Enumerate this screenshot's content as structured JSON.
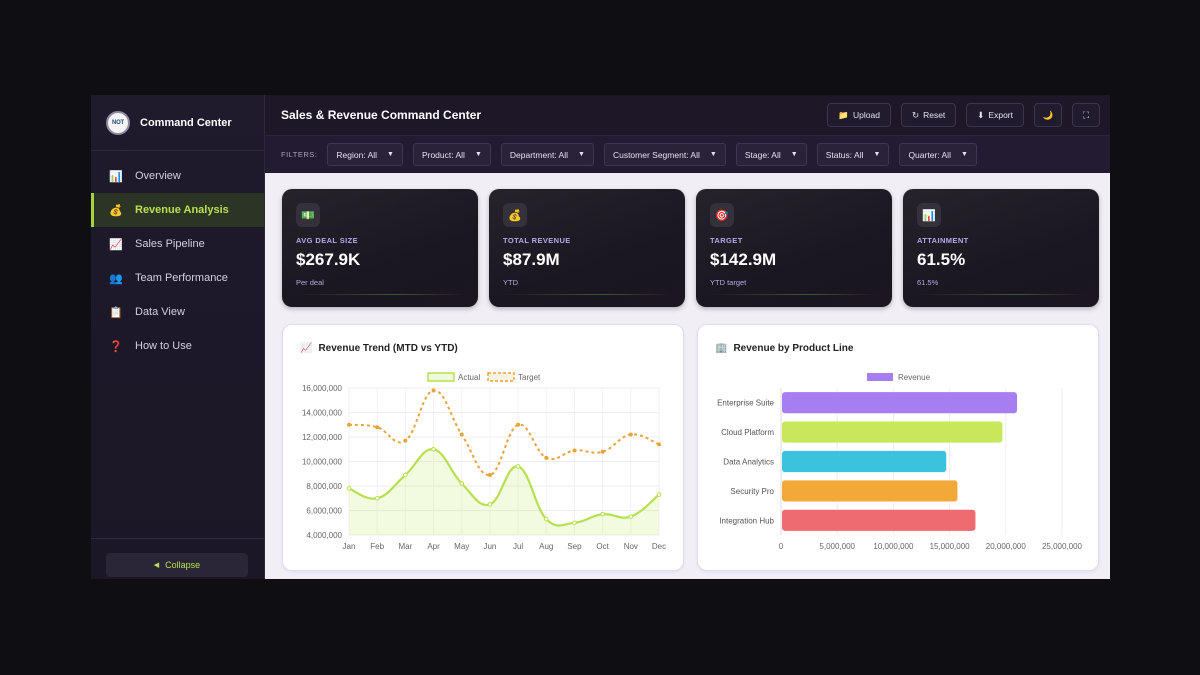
{
  "app": {
    "brand_name": "Command Center",
    "logo_text": "NOT"
  },
  "sidebar": {
    "items": [
      {
        "label": "Overview",
        "icon": "📊",
        "icon_name": "bar-chart-icon",
        "active": false
      },
      {
        "label": "Revenue Analysis",
        "icon": "💰",
        "icon_name": "money-bag-icon",
        "active": true
      },
      {
        "label": "Sales Pipeline",
        "icon": "📈",
        "icon_name": "trend-chart-icon",
        "active": false
      },
      {
        "label": "Team Performance",
        "icon": "👥",
        "icon_name": "team-icon",
        "active": false
      },
      {
        "label": "Data View",
        "icon": "📋",
        "icon_name": "clipboard-icon",
        "active": false
      },
      {
        "label": "How to Use",
        "icon": "❓",
        "icon_name": "question-icon",
        "active": false
      }
    ],
    "collapse_label": "Collapse",
    "collapse_icon": "◀"
  },
  "header": {
    "title": "Sales & Revenue Command Center",
    "upload_label": "Upload",
    "upload_icon": "📁",
    "reset_label": "Reset",
    "reset_icon": "↻",
    "export_label": "Export",
    "export_icon": "⬇",
    "theme_icon": "🌙",
    "fullscreen_icon": "⛶"
  },
  "filters": {
    "label": "FILTERS:",
    "items": [
      {
        "label": "Region: All"
      },
      {
        "label": "Product: All"
      },
      {
        "label": "Department: All"
      },
      {
        "label": "Customer Segment: All"
      },
      {
        "label": "Stage: All"
      },
      {
        "label": "Status: All"
      },
      {
        "label": "Quarter: All"
      }
    ],
    "caret": "▼"
  },
  "kpis": [
    {
      "label": "AVG DEAL SIZE",
      "value": "$267.9K",
      "sub": "Per deal",
      "icon": "💵",
      "icon_name": "cash-icon"
    },
    {
      "label": "TOTAL REVENUE",
      "value": "$87.9M",
      "sub": "YTD",
      "icon": "💰",
      "icon_name": "money-bag-icon"
    },
    {
      "label": "TARGET",
      "value": "$142.9M",
      "sub": "YTD target",
      "icon": "🎯",
      "icon_name": "target-icon"
    },
    {
      "label": "ATTAINMENT",
      "value": "61.5%",
      "sub": "61.5%",
      "icon": "📊",
      "icon_name": "bar-chart-icon"
    }
  ],
  "charts": {
    "trend_title": "Revenue Trend (MTD vs YTD)",
    "trend_icon": "📈",
    "product_title": "Revenue by Product Line",
    "product_icon": "🏢"
  },
  "colors": {
    "accent": "#a3d43a",
    "actual_line": "#b6e04f",
    "target_line": "#e6a43b",
    "bars": [
      "#a77ef2",
      "#c6e85a",
      "#3bc3dd",
      "#f3a938",
      "#ef6b72"
    ]
  },
  "chart_data": [
    {
      "type": "line",
      "title": "Revenue Trend (MTD vs YTD)",
      "x": [
        "Jan",
        "Feb",
        "Mar",
        "Apr",
        "May",
        "Jun",
        "Jul",
        "Aug",
        "Sep",
        "Oct",
        "Nov",
        "Dec"
      ],
      "series": [
        {
          "name": "Actual",
          "values": [
            7800000,
            7000000,
            8900000,
            11000000,
            8200000,
            6500000,
            9600000,
            5300000,
            5000000,
            5700000,
            5500000,
            7300000
          ],
          "fill": true
        },
        {
          "name": "Target",
          "values": [
            13000000,
            12800000,
            11700000,
            15800000,
            12200000,
            8900000,
            13000000,
            10300000,
            10900000,
            10800000,
            12200000,
            11400000
          ],
          "dashed": true
        }
      ],
      "ylim": [
        4000000,
        16000000
      ],
      "yticks": [
        "4,000,000",
        "6,000,000",
        "8,000,000",
        "10,000,000",
        "12,000,000",
        "14,000,000",
        "16,000,000"
      ],
      "grid": true,
      "legend": "top-center"
    },
    {
      "type": "bar",
      "orientation": "horizontal",
      "title": "Revenue by Product Line",
      "categories": [
        "Enterprise Suite",
        "Cloud Platform",
        "Data Analytics",
        "Security Pro",
        "Integration Hub"
      ],
      "series": [
        {
          "name": "Revenue",
          "values": [
            21000000,
            19700000,
            14700000,
            15700000,
            17300000
          ]
        }
      ],
      "xlim": [
        0,
        25000000
      ],
      "xticks": [
        "0",
        "5,000,000",
        "10,000,000",
        "15,000,000",
        "20,000,000",
        "25,000,000"
      ],
      "grid": true,
      "legend": "top-center"
    }
  ]
}
